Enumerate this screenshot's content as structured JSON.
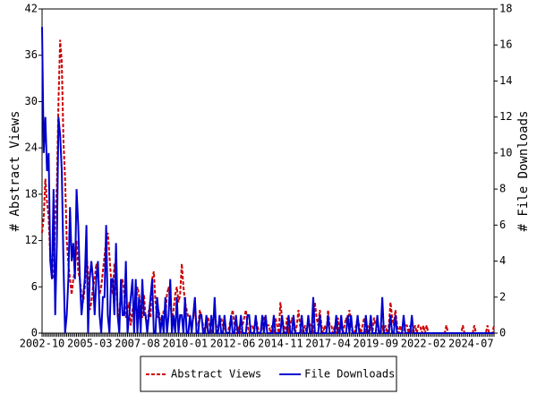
{
  "chart_data": {
    "type": "line",
    "y_label": "# Abstract Views",
    "y2_label": "# File Downloads",
    "ylim": [
      0,
      42
    ],
    "yticks": [
      0,
      6,
      12,
      18,
      24,
      30,
      36,
      42
    ],
    "y2lim": [
      0,
      18
    ],
    "y2ticks": [
      0,
      2,
      4,
      6,
      8,
      10,
      12,
      14,
      16,
      18
    ],
    "legend": "bottom",
    "categories": [
      "2002-10",
      null,
      null,
      null,
      null,
      null,
      null,
      null,
      null,
      null,
      null,
      null,
      null,
      null,
      null,
      null,
      null,
      null,
      null,
      null,
      null,
      null,
      null,
      null,
      null,
      null,
      null,
      null,
      null,
      "2005-03",
      null,
      null,
      null,
      null,
      null,
      null,
      null,
      null,
      null,
      null,
      null,
      null,
      null,
      null,
      null,
      null,
      null,
      null,
      null,
      null,
      null,
      null,
      null,
      null,
      null,
      null,
      null,
      null,
      "2007-08",
      null,
      null,
      null,
      null,
      null,
      null,
      null,
      null,
      null,
      null,
      null,
      null,
      null,
      null,
      null,
      null,
      null,
      null,
      null,
      null,
      null,
      null,
      null,
      null,
      null,
      null,
      null,
      null,
      "2010-01",
      null,
      null,
      null,
      null,
      null,
      null,
      null,
      null,
      null,
      null,
      null,
      null,
      null,
      null,
      null,
      null,
      null,
      null,
      null,
      null,
      null,
      null,
      null,
      null,
      null,
      null,
      null,
      null,
      "2012-06",
      null,
      null,
      null,
      null,
      null,
      null,
      null,
      null,
      null,
      null,
      null,
      null,
      null,
      null,
      null,
      null,
      null,
      null,
      null,
      null,
      null,
      null,
      null,
      null,
      null,
      null,
      null,
      null,
      "2014-11",
      null,
      null,
      null,
      null,
      null,
      null,
      null,
      null,
      null,
      null,
      null,
      null,
      null,
      null,
      null,
      null,
      null,
      null,
      null,
      null,
      null,
      null,
      null,
      null,
      null,
      null,
      null,
      null,
      "2017-04",
      null,
      null,
      null,
      null,
      null,
      null,
      null,
      null,
      null,
      null,
      null,
      null,
      null,
      null,
      null,
      null,
      null,
      null,
      null,
      null,
      null,
      null,
      null,
      null,
      null,
      null,
      null,
      null,
      "2019-09",
      null,
      null,
      null,
      null,
      null,
      null,
      null,
      null,
      null,
      null,
      null,
      null,
      null,
      null,
      null,
      null,
      null,
      null,
      null,
      null,
      null,
      null,
      null,
      null,
      null,
      null,
      null,
      null,
      "2022-02",
      null,
      null,
      null,
      null,
      null,
      null,
      null,
      null,
      null,
      null,
      null,
      null,
      null,
      null,
      null,
      null,
      null,
      null,
      null,
      null,
      null,
      null,
      null,
      null,
      null,
      null,
      null,
      null,
      "2024-07",
      null,
      null,
      null,
      null,
      null,
      null,
      null,
      null,
      null,
      null,
      null,
      null,
      null,
      null
    ],
    "series": [
      {
        "name": "Abstract Views",
        "color": "#cc0000",
        "linestyle": "dashed",
        "values": [
          13,
          15,
          20,
          17,
          15,
          10,
          8,
          7,
          15,
          19,
          30,
          38,
          35,
          25,
          20,
          12,
          9,
          7,
          5,
          7,
          8,
          12,
          8,
          7,
          5,
          4,
          6,
          10,
          8,
          3,
          4,
          6,
          7,
          9,
          8,
          5,
          6,
          8,
          10,
          12,
          13,
          10,
          7,
          5,
          9,
          7,
          3,
          2,
          6,
          7,
          5,
          2,
          3,
          4,
          1,
          3,
          4,
          3,
          6,
          5,
          3,
          2,
          5,
          2,
          1,
          3,
          2,
          7,
          8,
          4,
          2,
          3,
          1,
          1,
          3,
          2,
          5,
          6,
          4,
          2,
          3,
          5,
          6,
          4,
          5,
          9,
          6,
          4,
          3,
          2,
          2,
          1,
          2,
          3,
          1,
          1,
          3,
          2,
          1,
          0,
          1,
          2,
          1,
          0,
          1,
          3,
          1,
          0,
          2,
          2,
          1,
          1,
          0,
          0,
          1,
          2,
          3,
          1,
          0,
          0,
          1,
          0,
          1,
          2,
          3,
          1,
          0,
          1,
          1,
          0,
          2,
          1,
          0,
          0,
          1,
          2,
          2,
          1,
          1,
          0,
          1,
          0,
          2,
          1,
          0,
          4,
          2,
          1,
          0,
          2,
          0,
          1,
          2,
          1,
          0,
          1,
          3,
          1,
          0,
          0,
          1,
          0,
          2,
          1,
          1,
          0,
          4,
          2,
          1,
          3,
          1,
          0,
          1,
          0,
          3,
          1,
          1,
          0,
          1,
          0,
          2,
          0,
          1,
          0,
          1,
          2,
          1,
          3,
          1,
          0,
          0,
          1,
          2,
          1,
          0,
          1,
          2,
          0,
          1,
          0,
          1,
          0,
          2,
          1,
          1,
          0,
          0,
          1,
          0,
          1,
          0,
          1,
          4,
          2,
          1,
          3,
          1,
          0,
          1,
          0,
          0,
          1,
          1,
          0,
          1,
          0,
          0,
          1,
          0,
          1,
          1,
          0,
          1,
          0,
          1,
          0,
          0,
          0,
          0,
          0,
          0,
          0,
          0,
          0,
          0,
          0,
          1,
          0,
          0,
          0,
          0,
          0,
          0,
          0,
          0,
          0,
          1,
          0,
          0,
          0,
          0,
          0,
          0,
          1,
          0,
          0,
          0,
          0,
          0,
          0,
          0,
          1,
          0,
          0,
          0,
          1
        ]
      },
      {
        "name": "File Downloads",
        "color": "#0000cc",
        "linestyle": "solid",
        "axis": "y2",
        "values": [
          17,
          10,
          12,
          9,
          10,
          4,
          3,
          8,
          1,
          5,
          12,
          11,
          9,
          4,
          0,
          1,
          3,
          7,
          4,
          5,
          3,
          8,
          6,
          3,
          1,
          2,
          3,
          6,
          0,
          3,
          4,
          3,
          1,
          3,
          4,
          1,
          0,
          2,
          2,
          6,
          1,
          0,
          3,
          3,
          1,
          5,
          1,
          0,
          3,
          1,
          1,
          4,
          0,
          1,
          2,
          3,
          0,
          3,
          0,
          2,
          0,
          3,
          1,
          1,
          0,
          1,
          2,
          3,
          0,
          0,
          2,
          1,
          0,
          1,
          0,
          2,
          0,
          1,
          3,
          0,
          1,
          0,
          2,
          0,
          1,
          1,
          0,
          2,
          0,
          0,
          1,
          0,
          1,
          2,
          0,
          0,
          1,
          1,
          0,
          0,
          1,
          0,
          0,
          1,
          0,
          2,
          0,
          0,
          1,
          0,
          0,
          1,
          0,
          0,
          0,
          1,
          0,
          0,
          1,
          0,
          0,
          1,
          0,
          0,
          0,
          1,
          1,
          0,
          0,
          0,
          1,
          0,
          0,
          0,
          1,
          0,
          1,
          0,
          0,
          0,
          0,
          1,
          0,
          0,
          0,
          0,
          1,
          0,
          0,
          0,
          1,
          0,
          0,
          1,
          0,
          0,
          0,
          0,
          1,
          0,
          0,
          0,
          1,
          0,
          0,
          2,
          0,
          0,
          0,
          1,
          0,
          0,
          0,
          0,
          1,
          0,
          0,
          0,
          0,
          1,
          0,
          0,
          1,
          0,
          0,
          0,
          1,
          0,
          1,
          0,
          0,
          0,
          1,
          0,
          0,
          0,
          0,
          1,
          0,
          0,
          1,
          0,
          0,
          0,
          1,
          0,
          0,
          2,
          0,
          0,
          0,
          0,
          1,
          0,
          0,
          1,
          0,
          0,
          0,
          0,
          1,
          0,
          0,
          0,
          0,
          1,
          0,
          0,
          0,
          0,
          0,
          0,
          0,
          0,
          0,
          0,
          0,
          0,
          0,
          0,
          0,
          0,
          0,
          0,
          0,
          0,
          0,
          0,
          0,
          0,
          0,
          0,
          0,
          0,
          0,
          0,
          0,
          0,
          0,
          0,
          0,
          0,
          0,
          0,
          0,
          0,
          0,
          0,
          0,
          0,
          0,
          0,
          0,
          0,
          0,
          0
        ]
      }
    ]
  }
}
